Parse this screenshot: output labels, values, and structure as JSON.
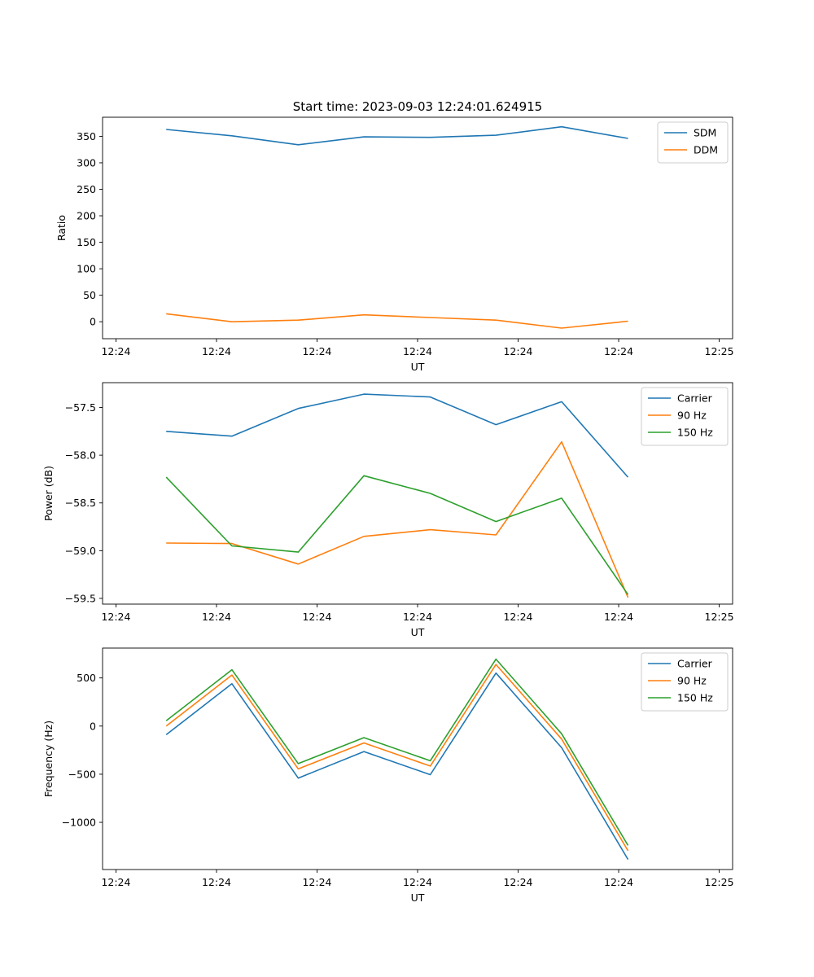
{
  "figure_title": "Start time: 2023-09-03 12:24:01.624915",
  "chart_data": [
    {
      "type": "line",
      "ylabel": "Ratio",
      "xlabel": "UT",
      "ylim": [
        -32,
        386
      ],
      "yticks": [
        0,
        50,
        100,
        150,
        200,
        250,
        300,
        350
      ],
      "ytick_labels": [
        "0",
        "50",
        "100",
        "150",
        "200",
        "250",
        "300",
        "350"
      ],
      "legend": "top-right",
      "series": [
        {
          "name": "SDM",
          "color": "#1f77b4",
          "values": [
            363,
            351,
            334,
            349,
            348,
            352,
            368,
            346
          ]
        },
        {
          "name": "DDM",
          "color": "#ff7f0e",
          "values": [
            15,
            0,
            3,
            13,
            8,
            3,
            -12,
            1
          ]
        }
      ]
    },
    {
      "type": "line",
      "ylabel": "Power (dB)",
      "xlabel": "UT",
      "ylim": [
        -59.56,
        -57.24
      ],
      "yticks": [
        -59.5,
        -59.0,
        -58.5,
        -58.0,
        -57.5
      ],
      "ytick_labels": [
        "−59.5",
        "−59.0",
        "−58.5",
        "−58.0",
        "−57.5"
      ],
      "legend": "top-right",
      "series": [
        {
          "name": "Carrier",
          "color": "#1f77b4",
          "values": [
            -57.75,
            -57.8,
            -57.51,
            -57.36,
            -57.39,
            -57.68,
            -57.44,
            -58.23
          ]
        },
        {
          "name": "90 Hz",
          "color": "#ff7f0e",
          "values": [
            -58.92,
            -58.925,
            -59.14,
            -58.85,
            -58.78,
            -58.835,
            -57.86,
            -59.49
          ]
        },
        {
          "name": "150 Hz",
          "color": "#2ca02c",
          "values": [
            -58.23,
            -58.95,
            -59.015,
            -58.215,
            -58.4,
            -58.695,
            -58.45,
            -59.46
          ]
        }
      ]
    },
    {
      "type": "line",
      "ylabel": "Frequency (Hz)",
      "xlabel": "UT",
      "ylim": [
        -1490,
        810
      ],
      "yticks": [
        -1000,
        -500,
        0,
        500
      ],
      "ytick_labels": [
        "−1000",
        "−500",
        "0",
        "500"
      ],
      "legend": "top-right",
      "series": [
        {
          "name": "Carrier",
          "color": "#1f77b4",
          "values": [
            -90,
            440,
            -540,
            -265,
            -505,
            550,
            -225,
            -1385
          ]
        },
        {
          "name": "90 Hz",
          "color": "#ff7f0e",
          "values": [
            0,
            530,
            -445,
            -175,
            -415,
            640,
            -135,
            -1295
          ]
        },
        {
          "name": "150 Hz",
          "color": "#2ca02c",
          "values": [
            55,
            585,
            -390,
            -120,
            -360,
            695,
            -80,
            -1240
          ]
        }
      ]
    }
  ],
  "x_axis": {
    "positions": [
      0,
      1.5,
      3,
      4.5,
      6,
      7.5,
      9
    ],
    "tick_labels": [
      "12:24",
      "12:24",
      "12:24",
      "12:24",
      "12:24",
      "12:24",
      "12:25"
    ],
    "xlim": [
      -0.2,
      9.2
    ],
    "data_x": [
      0.75,
      1.73,
      2.72,
      3.7,
      4.69,
      5.67,
      6.65,
      7.64
    ]
  }
}
